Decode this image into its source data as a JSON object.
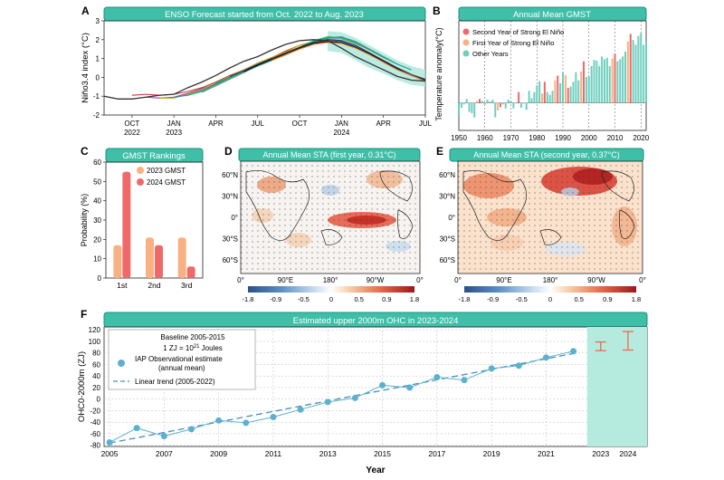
{
  "colors": {
    "header_fill": "#3fbfa8",
    "header_stroke": "#1e8f7c",
    "second_year": "#ee6a6a",
    "first_year": "#f9b183",
    "other_years": "#6fcfbf",
    "ohc_shade": "#b5ebdf",
    "ohc_point": "#5cb1cf",
    "ohc_trend": "#4a8fb7",
    "ohc_error": "#ef6a4a",
    "enso_band": "#a6e4d8"
  },
  "panel_labels": {
    "a": "A",
    "b": "B",
    "c": "C",
    "d": "D",
    "e": "E",
    "f": "F"
  },
  "chart_data": [
    {
      "id": "A",
      "type": "line",
      "title": "ENSO Forecast started from Oct. 2022 to Aug. 2023",
      "ylabel": "Niño3.4 index (°C)",
      "xlabel": "",
      "ylim": [
        -2,
        3
      ],
      "yticks": [
        -2,
        -1,
        0,
        1,
        2,
        3
      ],
      "x_tick_labels": [
        {
          "label": "OCT",
          "sub": "2022",
          "m": 0
        },
        {
          "label": "JAN",
          "sub": "2023",
          "m": 3
        },
        {
          "label": "APR",
          "sub": "",
          "m": 6
        },
        {
          "label": "JUL",
          "sub": "",
          "m": 9
        },
        {
          "label": "OCT",
          "sub": "",
          "m": 12
        },
        {
          "label": "JAN",
          "sub": "2024",
          "m": 15
        },
        {
          "label": "APR",
          "sub": "",
          "m": 18
        },
        {
          "label": "JUL",
          "sub": "",
          "m": 21
        }
      ],
      "observed": {
        "m": [
          -2,
          -1,
          0,
          1,
          2,
          3,
          4,
          5,
          6,
          7,
          8,
          9,
          10,
          11,
          12,
          13,
          14,
          15,
          16,
          17,
          18,
          19,
          20,
          21
        ],
        "values": [
          -1.0,
          -1.15,
          -1.15,
          -1.05,
          -0.95,
          -0.9,
          -0.55,
          -0.25,
          0.1,
          0.5,
          0.85,
          1.1,
          1.45,
          1.75,
          1.95,
          2.0,
          1.95,
          1.55,
          1.1,
          0.75,
          0.4,
          0.05,
          -0.15,
          -0.2
        ]
      },
      "band": {
        "m": [
          14,
          15,
          16,
          17,
          18,
          19,
          20,
          21
        ],
        "upper": [
          2.45,
          2.4,
          2.1,
          1.7,
          1.3,
          0.9,
          0.6,
          0.4
        ],
        "lower": [
          1.4,
          1.3,
          0.9,
          0.5,
          0.2,
          -0.15,
          -0.4,
          -0.5
        ]
      },
      "forecasts": [
        {
          "color": "#c0392b",
          "m": [
            0,
            1,
            2,
            3,
            4,
            5,
            6,
            7,
            8,
            9,
            10,
            11,
            12,
            13,
            14
          ],
          "values": [
            -0.95,
            -0.9,
            -0.95,
            -0.9,
            -0.75,
            -0.55,
            -0.25,
            0.1,
            0.4,
            0.75,
            1.05,
            1.4,
            1.7,
            1.9,
            1.85
          ]
        },
        {
          "color": "#8e44ad",
          "m": [
            1,
            2,
            3,
            4,
            5,
            6,
            7,
            8,
            9,
            10,
            11,
            12,
            13,
            14,
            15
          ],
          "values": [
            -1.05,
            -1.1,
            -1.05,
            -0.85,
            -0.6,
            -0.35,
            0.0,
            0.35,
            0.7,
            1.0,
            1.3,
            1.6,
            1.85,
            1.95,
            1.9
          ]
        },
        {
          "color": "#d4a017",
          "m": [
            2,
            3,
            4,
            5,
            6,
            7,
            8,
            9,
            10,
            11,
            12,
            13,
            14,
            15,
            16
          ],
          "values": [
            -1.1,
            -1.1,
            -0.9,
            -0.65,
            -0.3,
            0.05,
            0.4,
            0.75,
            1.05,
            1.35,
            1.7,
            1.9,
            2.0,
            1.95,
            1.7
          ]
        },
        {
          "color": "#2e86c1",
          "m": [
            3,
            4,
            5,
            6,
            7,
            8,
            9,
            10,
            11,
            12,
            13,
            14,
            15,
            16,
            17
          ],
          "values": [
            -1.05,
            -0.95,
            -0.7,
            -0.35,
            0.0,
            0.35,
            0.7,
            0.95,
            1.25,
            1.6,
            1.85,
            2.0,
            1.9,
            1.65,
            1.3
          ]
        },
        {
          "color": "#27ae60",
          "m": [
            4,
            5,
            6,
            7,
            8,
            9,
            10,
            11,
            12,
            13,
            14,
            15,
            16,
            17,
            18
          ],
          "values": [
            -0.95,
            -0.75,
            -0.4,
            -0.05,
            0.3,
            0.65,
            0.95,
            1.25,
            1.6,
            1.95,
            2.15,
            2.1,
            1.85,
            1.45,
            1.05
          ]
        },
        {
          "color": "#7f8c8d",
          "m": [
            5,
            6,
            7,
            8,
            9,
            10,
            11,
            12,
            13,
            14,
            15,
            16,
            17,
            18,
            19
          ],
          "values": [
            -0.8,
            -0.45,
            -0.1,
            0.25,
            0.6,
            0.9,
            1.2,
            1.55,
            1.85,
            2.05,
            2.05,
            1.8,
            1.45,
            1.05,
            0.7
          ]
        },
        {
          "color": "#16a085",
          "m": [
            6,
            7,
            8,
            9,
            10,
            11,
            12,
            13,
            14,
            15,
            16,
            17,
            18,
            19,
            20
          ],
          "values": [
            -0.3,
            0.0,
            0.3,
            0.6,
            0.9,
            1.2,
            1.55,
            1.9,
            2.1,
            2.15,
            1.9,
            1.5,
            1.1,
            0.7,
            0.4
          ]
        },
        {
          "color": "#1f3a5f",
          "m": [
            7,
            8,
            9,
            10,
            11,
            12,
            13,
            14,
            15,
            16,
            17,
            18,
            19,
            20,
            21
          ],
          "values": [
            0.05,
            0.35,
            0.7,
            1.0,
            1.3,
            1.6,
            1.85,
            2.0,
            1.95,
            1.7,
            1.3,
            0.9,
            0.5,
            0.15,
            -0.1
          ]
        },
        {
          "color": "#111111",
          "m": [
            8,
            9,
            10,
            11,
            12,
            13,
            14,
            15,
            16,
            17,
            18,
            19,
            20,
            21
          ],
          "values": [
            0.3,
            0.65,
            0.95,
            1.25,
            1.55,
            1.8,
            1.9,
            1.85,
            1.6,
            1.25,
            0.85,
            0.45,
            0.1,
            -0.15
          ]
        },
        {
          "color": "#e67e22",
          "m": [
            10,
            11,
            12,
            13,
            14,
            15,
            16,
            17,
            18,
            19,
            20,
            21
          ],
          "values": [
            0.9,
            1.2,
            1.5,
            1.75,
            1.85,
            1.8,
            1.55,
            1.2,
            0.8,
            0.4,
            0.1,
            -0.2
          ]
        }
      ]
    },
    {
      "id": "B",
      "type": "bar",
      "title": "Annual Mean GMST",
      "ylabel": "Temperature anomaly(°C)",
      "xlabel": "",
      "ylim": [
        -0.4,
        1.2
      ],
      "xlim": [
        1950,
        2022
      ],
      "x_ticks": [
        "1950",
        "1960",
        "1970",
        "1980",
        "1990",
        "2000",
        "2010",
        "2020"
      ],
      "legend": [
        "Second Year of Strong El Niño",
        "First Year of Strong El Niño",
        "Other Years"
      ],
      "start_year": 1950,
      "values": [
        -0.18,
        -0.07,
        -0.02,
        0.06,
        -0.13,
        -0.15,
        -0.21,
        0.03,
        0.06,
        0.03,
        -0.02,
        0.05,
        0.02,
        0.05,
        -0.21,
        -0.11,
        -0.06,
        -0.02,
        -0.08,
        0.05,
        0.03,
        -0.08,
        0.01,
        0.16,
        -0.07,
        -0.01,
        -0.1,
        0.18,
        0.07,
        0.16,
        0.26,
        0.32,
        0.14,
        0.31,
        0.16,
        0.12,
        0.18,
        0.33,
        0.4,
        0.29,
        0.45,
        0.41,
        0.22,
        0.24,
        0.31,
        0.45,
        0.33,
        0.46,
        0.61,
        0.38,
        0.39,
        0.54,
        0.63,
        0.62,
        0.54,
        0.68,
        0.64,
        0.66,
        0.54,
        0.65,
        0.72,
        0.61,
        0.64,
        0.68,
        0.75,
        0.9,
        1.01,
        0.92,
        0.85,
        0.98,
        1.02,
        0.85,
        0.89
      ],
      "first_years": [
        1957,
        1965,
        1972,
        1982,
        1987,
        1991,
        1997,
        2009,
        2015,
        2023
      ],
      "second_years": [
        1958,
        1966,
        1973,
        1983,
        1988,
        1992,
        1998,
        2010,
        2016
      ]
    },
    {
      "id": "C",
      "type": "bar",
      "title": "GMST Rankings",
      "ylabel": "Probability (%)",
      "xlabel": "",
      "ylim": [
        0,
        60
      ],
      "yticks": [
        0,
        10,
        20,
        30,
        40,
        50,
        60
      ],
      "categories": [
        "1st",
        "2nd",
        "3rd"
      ],
      "series": [
        {
          "name": "2023 GMST",
          "values": [
            17,
            21,
            21
          ]
        },
        {
          "name": "2024 GMST",
          "values": [
            55,
            17,
            6
          ]
        }
      ]
    },
    {
      "id": "D",
      "type": "heatmap",
      "title": "Annual Mean STA (first year, 0.31°C)",
      "lat_ticks": [
        "60°N",
        "30°N",
        "0°",
        "30°S",
        "60°S"
      ],
      "lon_ticks": [
        "0°",
        "90°E",
        "180°",
        "90°W",
        "0°"
      ],
      "colorbar_ticks": [
        "-1.8",
        "-0.9",
        "-0.5",
        "0",
        "0.5",
        "0.9",
        "1.8"
      ]
    },
    {
      "id": "E",
      "type": "heatmap",
      "title": "Annual Mean STA (second year, 0.37°C)",
      "lat_ticks": [
        "60°N",
        "30°N",
        "0°",
        "30°S",
        "60°S"
      ],
      "lon_ticks": [
        "0°",
        "90°E",
        "180°",
        "90°W",
        "0°"
      ],
      "colorbar_ticks": [
        "-1.8",
        "-0.9",
        "-0.5",
        "0",
        "0.5",
        "0.9",
        "1.8"
      ]
    },
    {
      "id": "F",
      "type": "line",
      "title": "Estimated upper 2000m OHC in 2023-2024",
      "ylabel": "OHC0-2000m (ZJ)",
      "xlabel": "Year",
      "xlim": [
        2004.8,
        2024.7
      ],
      "ylim": [
        -82,
        125
      ],
      "yticks": [
        -80,
        -60,
        -40,
        -20,
        0,
        20,
        40,
        60,
        80,
        100,
        120
      ],
      "x_ticks": [
        "2005",
        "2007",
        "2009",
        "2011",
        "2013",
        "2015",
        "2017",
        "2019",
        "2021",
        "2023",
        "2024"
      ],
      "x_tick_values": [
        2005,
        2007,
        2009,
        2011,
        2013,
        2015,
        2017,
        2019,
        2021,
        2023,
        2024
      ],
      "shade_start": 2022.5,
      "legend": {
        "baseline": "Baseline 2005-2015",
        "unit_prefix": "1 ZJ = 10",
        "unit_exp": "21",
        "unit_suffix": " Joules",
        "obs_line1": "IAP Observational estimate",
        "obs_line2": "(annual mean)",
        "trend": "Linear trend (2005-2022)"
      },
      "x": [
        2005,
        2006,
        2007,
        2008,
        2009,
        2010,
        2011,
        2012,
        2013,
        2014,
        2015,
        2016,
        2017,
        2018,
        2019,
        2020,
        2021,
        2022
      ],
      "values": [
        -75,
        -50,
        -64,
        -52,
        -37,
        -41,
        -31,
        -18,
        -5,
        2,
        24,
        20,
        38,
        33,
        53,
        58,
        72,
        83
      ],
      "trend_x": [
        2005,
        2022
      ],
      "trend_values": [
        -76,
        79
      ],
      "projections": [
        {
          "x": 2023,
          "center": 91,
          "low": 84,
          "high": 99
        },
        {
          "x": 2024,
          "center": 101,
          "low": 85,
          "high": 117
        }
      ]
    }
  ]
}
